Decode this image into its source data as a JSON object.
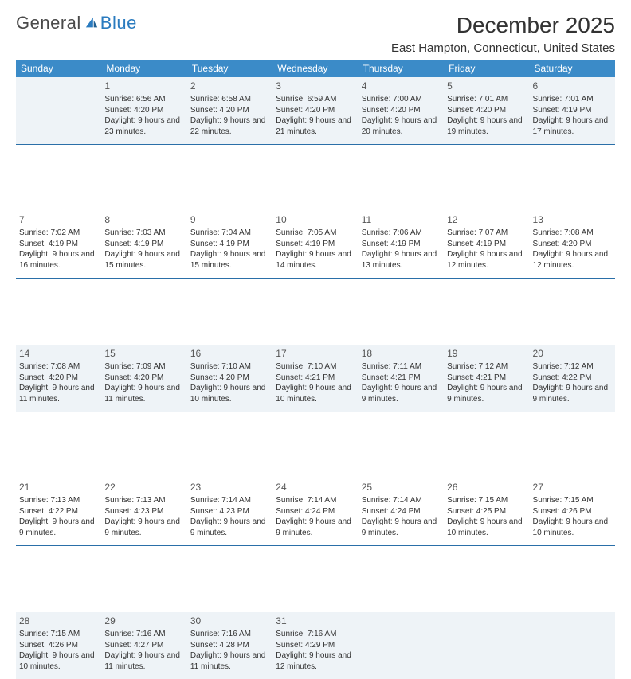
{
  "brand": {
    "word1": "General",
    "word2": "Blue"
  },
  "title": "December 2025",
  "location": "East Hampton, Connecticut, United States",
  "colors": {
    "header_bg": "#3b8bc8",
    "header_text": "#ffffff",
    "shade_bg": "#eef3f7",
    "rule": "#2a6fa8",
    "brand_gray": "#4a4a4a",
    "brand_blue": "#2a7bbf"
  },
  "day_headers": [
    "Sunday",
    "Monday",
    "Tuesday",
    "Wednesday",
    "Thursday",
    "Friday",
    "Saturday"
  ],
  "weeks": [
    [
      {
        "n": "",
        "sr": "",
        "ss": "",
        "dl": ""
      },
      {
        "n": "1",
        "sr": "Sunrise: 6:56 AM",
        "ss": "Sunset: 4:20 PM",
        "dl": "Daylight: 9 hours and 23 minutes."
      },
      {
        "n": "2",
        "sr": "Sunrise: 6:58 AM",
        "ss": "Sunset: 4:20 PM",
        "dl": "Daylight: 9 hours and 22 minutes."
      },
      {
        "n": "3",
        "sr": "Sunrise: 6:59 AM",
        "ss": "Sunset: 4:20 PM",
        "dl": "Daylight: 9 hours and 21 minutes."
      },
      {
        "n": "4",
        "sr": "Sunrise: 7:00 AM",
        "ss": "Sunset: 4:20 PM",
        "dl": "Daylight: 9 hours and 20 minutes."
      },
      {
        "n": "5",
        "sr": "Sunrise: 7:01 AM",
        "ss": "Sunset: 4:20 PM",
        "dl": "Daylight: 9 hours and 19 minutes."
      },
      {
        "n": "6",
        "sr": "Sunrise: 7:01 AM",
        "ss": "Sunset: 4:19 PM",
        "dl": "Daylight: 9 hours and 17 minutes."
      }
    ],
    [
      {
        "n": "7",
        "sr": "Sunrise: 7:02 AM",
        "ss": "Sunset: 4:19 PM",
        "dl": "Daylight: 9 hours and 16 minutes."
      },
      {
        "n": "8",
        "sr": "Sunrise: 7:03 AM",
        "ss": "Sunset: 4:19 PM",
        "dl": "Daylight: 9 hours and 15 minutes."
      },
      {
        "n": "9",
        "sr": "Sunrise: 7:04 AM",
        "ss": "Sunset: 4:19 PM",
        "dl": "Daylight: 9 hours and 15 minutes."
      },
      {
        "n": "10",
        "sr": "Sunrise: 7:05 AM",
        "ss": "Sunset: 4:19 PM",
        "dl": "Daylight: 9 hours and 14 minutes."
      },
      {
        "n": "11",
        "sr": "Sunrise: 7:06 AM",
        "ss": "Sunset: 4:19 PM",
        "dl": "Daylight: 9 hours and 13 minutes."
      },
      {
        "n": "12",
        "sr": "Sunrise: 7:07 AM",
        "ss": "Sunset: 4:19 PM",
        "dl": "Daylight: 9 hours and 12 minutes."
      },
      {
        "n": "13",
        "sr": "Sunrise: 7:08 AM",
        "ss": "Sunset: 4:20 PM",
        "dl": "Daylight: 9 hours and 12 minutes."
      }
    ],
    [
      {
        "n": "14",
        "sr": "Sunrise: 7:08 AM",
        "ss": "Sunset: 4:20 PM",
        "dl": "Daylight: 9 hours and 11 minutes."
      },
      {
        "n": "15",
        "sr": "Sunrise: 7:09 AM",
        "ss": "Sunset: 4:20 PM",
        "dl": "Daylight: 9 hours and 11 minutes."
      },
      {
        "n": "16",
        "sr": "Sunrise: 7:10 AM",
        "ss": "Sunset: 4:20 PM",
        "dl": "Daylight: 9 hours and 10 minutes."
      },
      {
        "n": "17",
        "sr": "Sunrise: 7:10 AM",
        "ss": "Sunset: 4:21 PM",
        "dl": "Daylight: 9 hours and 10 minutes."
      },
      {
        "n": "18",
        "sr": "Sunrise: 7:11 AM",
        "ss": "Sunset: 4:21 PM",
        "dl": "Daylight: 9 hours and 9 minutes."
      },
      {
        "n": "19",
        "sr": "Sunrise: 7:12 AM",
        "ss": "Sunset: 4:21 PM",
        "dl": "Daylight: 9 hours and 9 minutes."
      },
      {
        "n": "20",
        "sr": "Sunrise: 7:12 AM",
        "ss": "Sunset: 4:22 PM",
        "dl": "Daylight: 9 hours and 9 minutes."
      }
    ],
    [
      {
        "n": "21",
        "sr": "Sunrise: 7:13 AM",
        "ss": "Sunset: 4:22 PM",
        "dl": "Daylight: 9 hours and 9 minutes."
      },
      {
        "n": "22",
        "sr": "Sunrise: 7:13 AM",
        "ss": "Sunset: 4:23 PM",
        "dl": "Daylight: 9 hours and 9 minutes."
      },
      {
        "n": "23",
        "sr": "Sunrise: 7:14 AM",
        "ss": "Sunset: 4:23 PM",
        "dl": "Daylight: 9 hours and 9 minutes."
      },
      {
        "n": "24",
        "sr": "Sunrise: 7:14 AM",
        "ss": "Sunset: 4:24 PM",
        "dl": "Daylight: 9 hours and 9 minutes."
      },
      {
        "n": "25",
        "sr": "Sunrise: 7:14 AM",
        "ss": "Sunset: 4:24 PM",
        "dl": "Daylight: 9 hours and 9 minutes."
      },
      {
        "n": "26",
        "sr": "Sunrise: 7:15 AM",
        "ss": "Sunset: 4:25 PM",
        "dl": "Daylight: 9 hours and 10 minutes."
      },
      {
        "n": "27",
        "sr": "Sunrise: 7:15 AM",
        "ss": "Sunset: 4:26 PM",
        "dl": "Daylight: 9 hours and 10 minutes."
      }
    ],
    [
      {
        "n": "28",
        "sr": "Sunrise: 7:15 AM",
        "ss": "Sunset: 4:26 PM",
        "dl": "Daylight: 9 hours and 10 minutes."
      },
      {
        "n": "29",
        "sr": "Sunrise: 7:16 AM",
        "ss": "Sunset: 4:27 PM",
        "dl": "Daylight: 9 hours and 11 minutes."
      },
      {
        "n": "30",
        "sr": "Sunrise: 7:16 AM",
        "ss": "Sunset: 4:28 PM",
        "dl": "Daylight: 9 hours and 11 minutes."
      },
      {
        "n": "31",
        "sr": "Sunrise: 7:16 AM",
        "ss": "Sunset: 4:29 PM",
        "dl": "Daylight: 9 hours and 12 minutes."
      },
      {
        "n": "",
        "sr": "",
        "ss": "",
        "dl": ""
      },
      {
        "n": "",
        "sr": "",
        "ss": "",
        "dl": ""
      },
      {
        "n": "",
        "sr": "",
        "ss": "",
        "dl": ""
      }
    ]
  ],
  "shaded_weeks": [
    0,
    2,
    4
  ]
}
